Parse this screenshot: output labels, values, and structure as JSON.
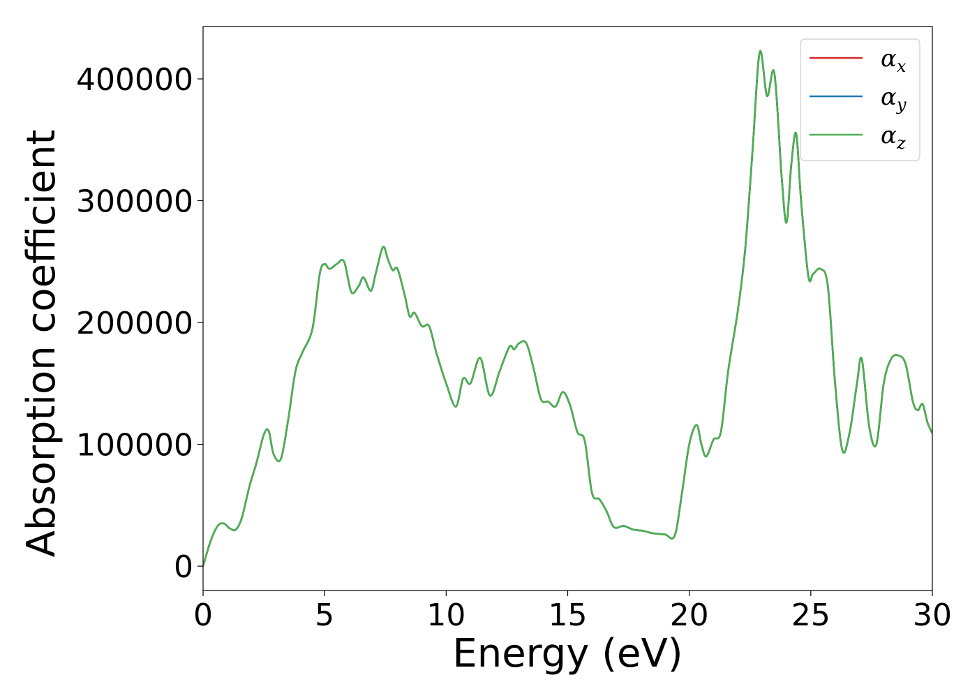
{
  "chart_data": {
    "type": "line",
    "title": "",
    "xlabel": "Energy (eV)",
    "ylabel": "Absorption coefficient",
    "xlim": [
      0,
      30
    ],
    "ylim": [
      -20000,
      443000
    ],
    "xticks": [
      0,
      5,
      10,
      15,
      20,
      25,
      30
    ],
    "xtick_labels": [
      "0",
      "5",
      "10",
      "15",
      "20",
      "25",
      "30"
    ],
    "yticks": [
      0,
      100000,
      200000,
      300000,
      400000
    ],
    "ytick_labels": [
      "0",
      "100000",
      "200000",
      "300000",
      "400000"
    ],
    "grid": false,
    "legend_position": "top-right",
    "series": [
      {
        "name": "α",
        "subscript": "x",
        "color": "#d62728"
      },
      {
        "name": "α",
        "subscript": "y",
        "color": "#1f77b4"
      },
      {
        "name": "α",
        "subscript": "z",
        "color": "#4caf50"
      }
    ],
    "x": [
      0,
      0.3,
      0.6,
      0.85,
      1.1,
      1.35,
      1.6,
      1.9,
      2.2,
      2.5,
      2.7,
      2.9,
      3.2,
      3.5,
      3.8,
      4.1,
      4.5,
      4.8,
      5.0,
      5.2,
      5.5,
      5.8,
      6.1,
      6.4,
      6.6,
      6.9,
      7.1,
      7.4,
      7.6,
      7.8,
      8.0,
      8.3,
      8.5,
      8.7,
      9.0,
      9.3,
      9.6,
      10.0,
      10.4,
      10.7,
      11.0,
      11.4,
      11.8,
      12.2,
      12.6,
      12.8,
      13.0,
      13.3,
      13.6,
      13.9,
      14.2,
      14.5,
      14.8,
      15.1,
      15.4,
      15.7,
      16.0,
      16.3,
      16.6,
      16.9,
      17.3,
      17.7,
      18.1,
      18.5,
      19.0,
      19.4,
      19.7,
      20.0,
      20.3,
      20.5,
      20.7,
      21.0,
      21.3,
      21.6,
      22.0,
      22.3,
      22.6,
      22.9,
      23.2,
      23.5,
      23.8,
      24.0,
      24.2,
      24.4,
      24.6,
      24.9,
      25.1,
      25.4,
      25.7,
      26.0,
      26.3,
      26.6,
      26.9,
      27.1,
      27.4,
      27.7,
      28.0,
      28.3,
      28.6,
      28.9,
      29.2,
      29.4,
      29.6,
      29.8,
      30.0
    ],
    "values": [
      0,
      20000,
      33000,
      35000,
      31000,
      30000,
      40000,
      65000,
      85000,
      108000,
      111000,
      92000,
      88000,
      120000,
      160000,
      176000,
      195000,
      240000,
      248000,
      244000,
      248000,
      250000,
      225000,
      230000,
      237000,
      226000,
      240000,
      262000,
      252000,
      243000,
      244000,
      222000,
      205000,
      208000,
      197000,
      197000,
      175000,
      150000,
      131000,
      154000,
      150000,
      171000,
      140000,
      160000,
      180000,
      178000,
      183000,
      183000,
      162000,
      137000,
      135000,
      131000,
      143000,
      132000,
      110000,
      103000,
      60000,
      55000,
      45000,
      32000,
      33000,
      30000,
      29000,
      27000,
      26000,
      25000,
      60000,
      100000,
      116000,
      100000,
      90000,
      104000,
      110000,
      160000,
      210000,
      260000,
      340000,
      422000,
      386000,
      405000,
      320000,
      282000,
      330000,
      355000,
      300000,
      238000,
      240000,
      244000,
      230000,
      150000,
      95000,
      110000,
      150000,
      170000,
      115000,
      100000,
      150000,
      170000,
      173000,
      166000,
      135000,
      128000,
      133000,
      118000,
      109000
    ]
  }
}
